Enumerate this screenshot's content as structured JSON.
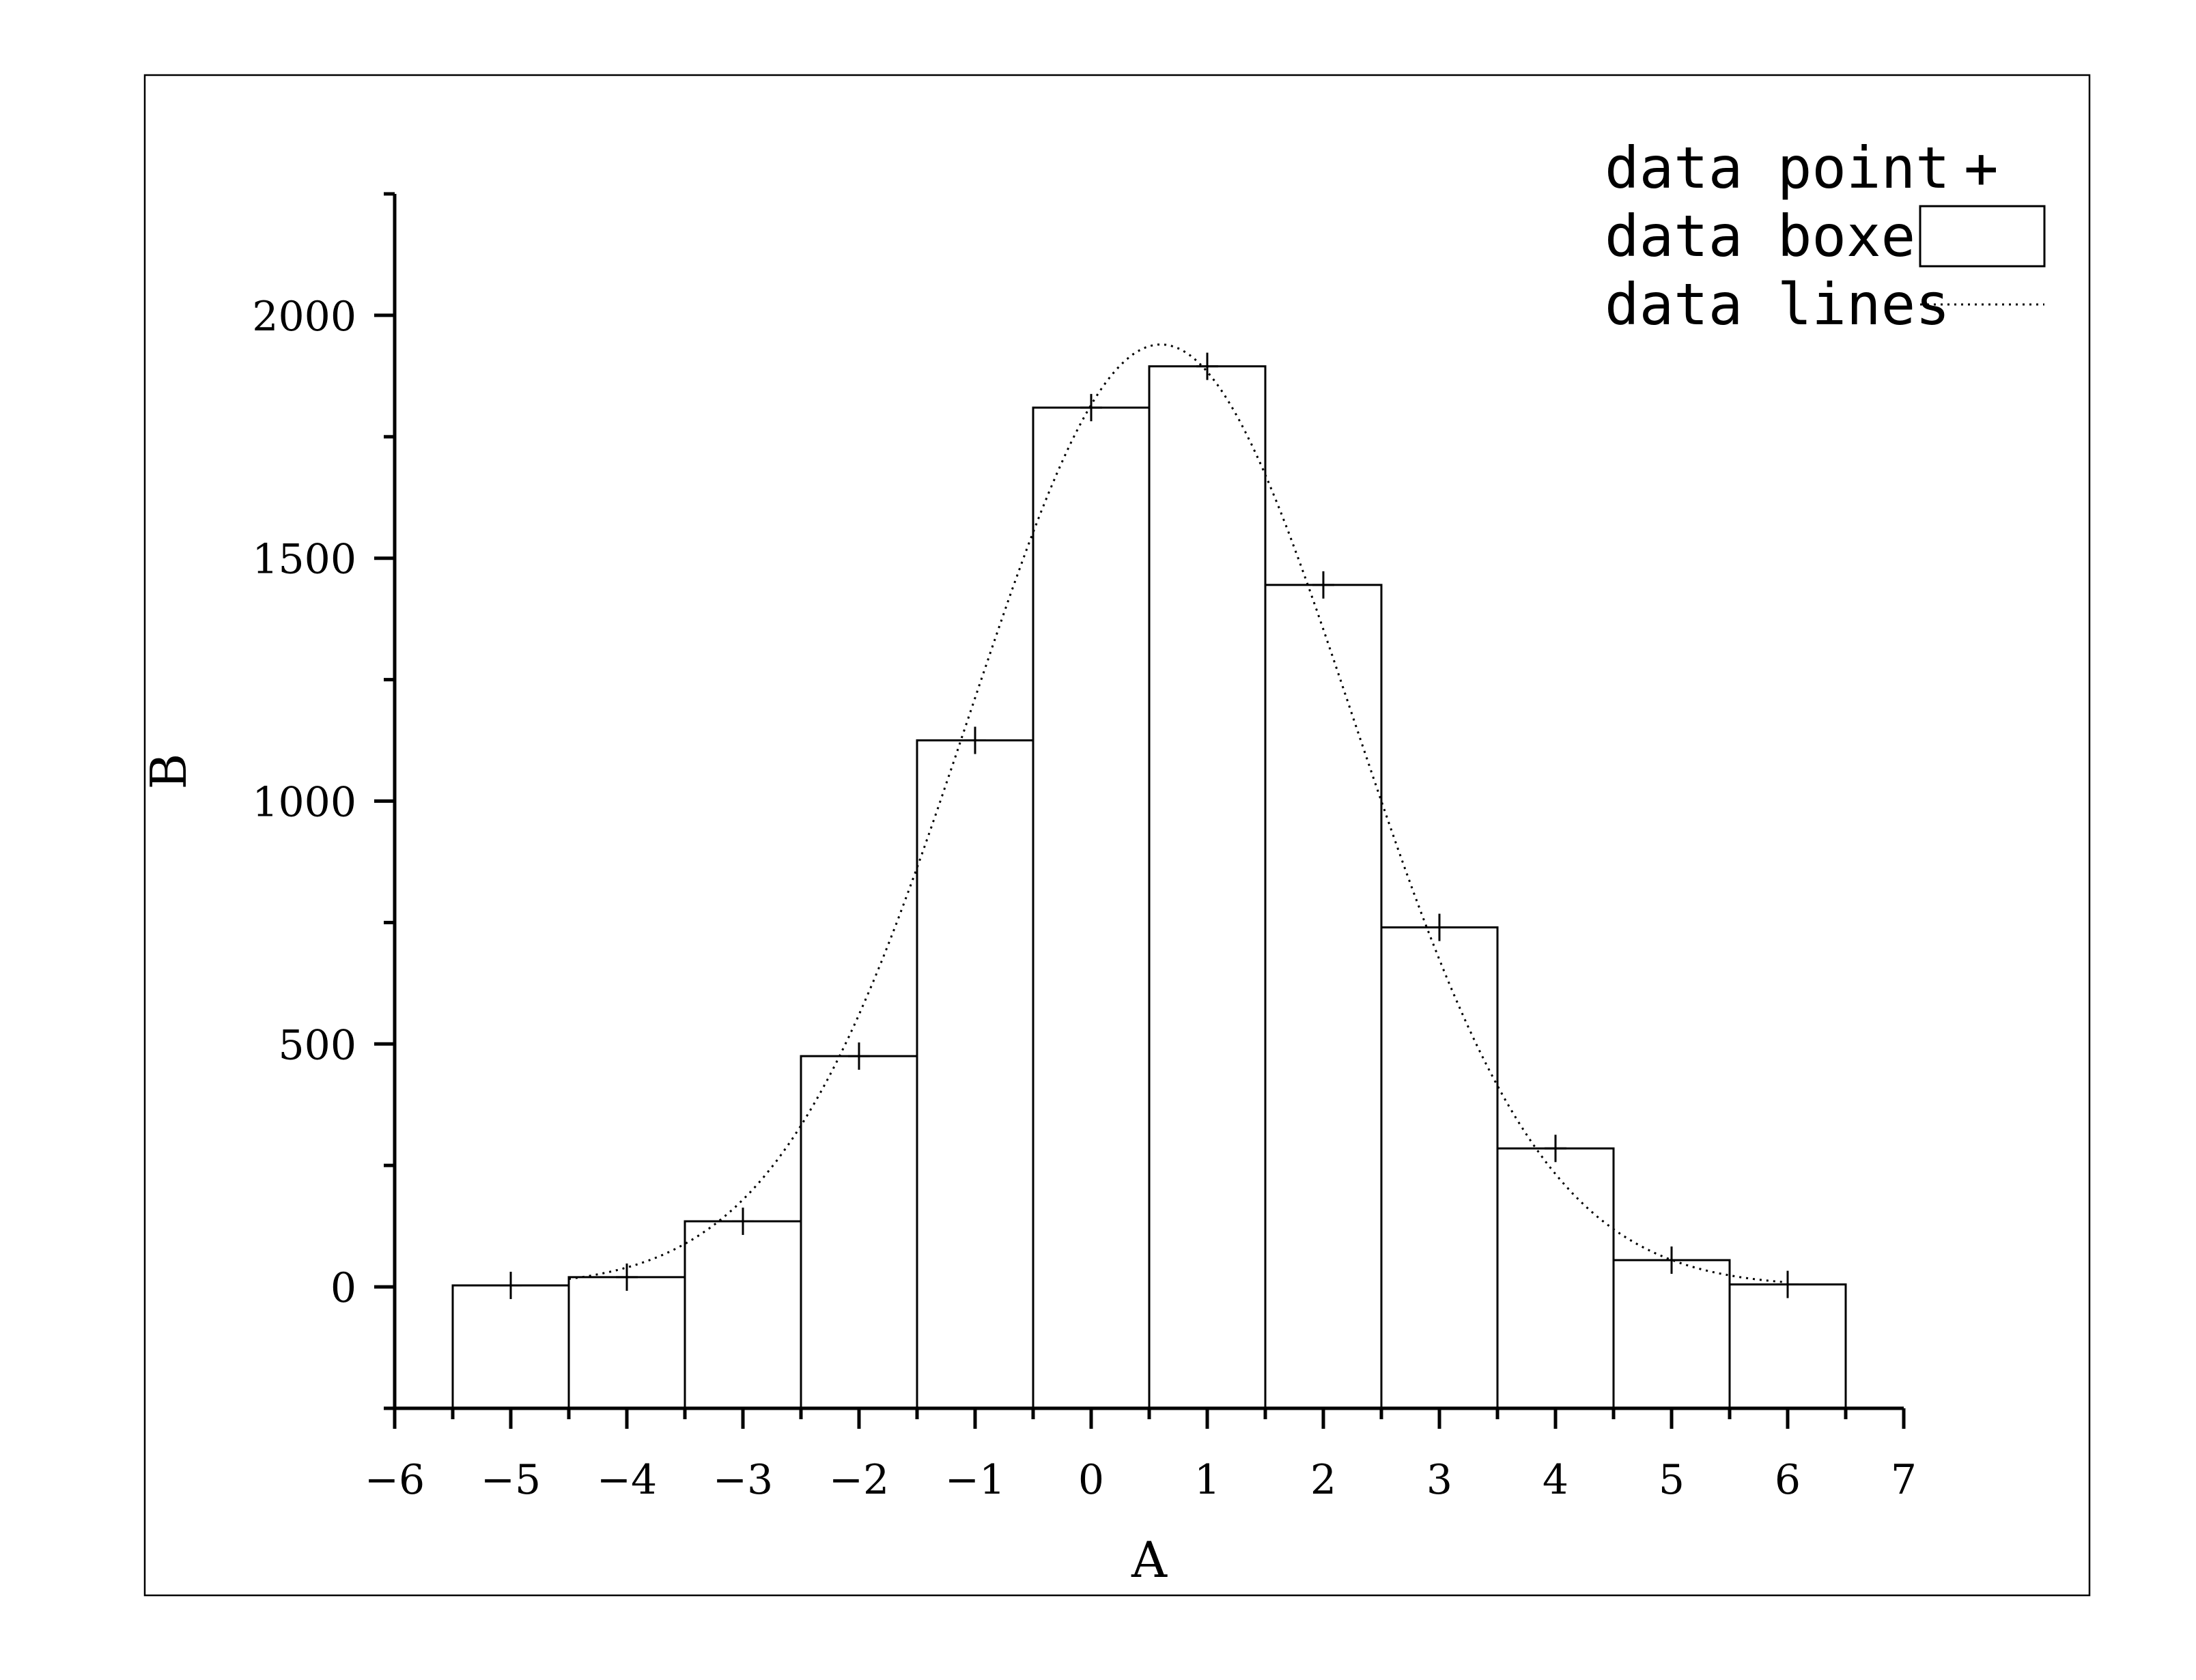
{
  "chart_data": {
    "type": "bar",
    "xlabel": "A",
    "ylabel": "B",
    "xlim": [
      -6,
      7
    ],
    "ylim": [
      -250,
      2250
    ],
    "x_ticks": [
      "-6",
      "-5",
      "-4",
      "-3",
      "-2",
      "-1",
      "0",
      "1",
      "2",
      "3",
      "4",
      "5",
      "6",
      "7"
    ],
    "y_ticks": [
      "0",
      "500",
      "1000",
      "1500",
      "2000"
    ],
    "x": [
      -5,
      -4,
      -3,
      -2,
      -1,
      0,
      1,
      2,
      3,
      4,
      5,
      6
    ],
    "series": [
      {
        "name": "data point",
        "type": "scatter",
        "marker": "+",
        "values": [
          3,
          20,
          135,
          475,
          1125,
          1810,
          1895,
          1445,
          740,
          285,
          55,
          5
        ]
      },
      {
        "name": "data boxes",
        "type": "bar",
        "values": [
          3,
          20,
          135,
          475,
          1125,
          1810,
          1895,
          1445,
          740,
          285,
          55,
          5
        ]
      },
      {
        "name": "data lines",
        "type": "line",
        "style": "dotted",
        "curve": {
          "peak_x": 0.6,
          "peak_y": 1940,
          "sigma": 1.65,
          "x_range": [
            -4.5,
            6
          ]
        }
      }
    ],
    "legend": {
      "position": "top-right",
      "entries": [
        {
          "label": "data point",
          "symbol": "+"
        },
        {
          "label": "data boxes",
          "symbol": "box"
        },
        {
          "label": "data lines",
          "symbol": "dotted-line"
        }
      ]
    },
    "grid": false,
    "colors": {
      "ink": "#000000",
      "background": "#ffffff"
    }
  }
}
